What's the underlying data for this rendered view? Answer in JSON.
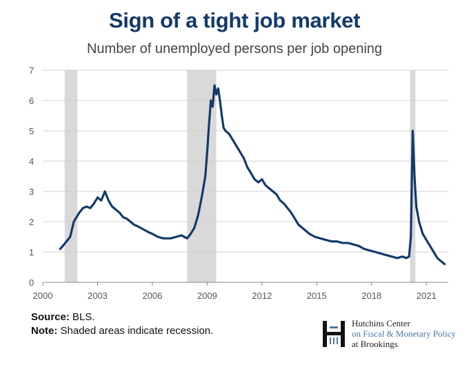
{
  "header": {
    "title": "Sign of a tight job market",
    "subtitle": "Number of unemployed persons per job opening"
  },
  "footer": {
    "source_label": "Source:",
    "source_text": "BLS.",
    "note_label": "Note:",
    "note_text": "Shaded areas indicate recession."
  },
  "logo": {
    "line1": "Hutchins Center",
    "line2": "on Fiscal & Monetary Policy",
    "line3": "at Brookings"
  },
  "colors": {
    "line": "#123a6b",
    "recession": "#d9d9d9",
    "grid": "#d0d0d0",
    "title": "#123a6b"
  },
  "chart_data": {
    "type": "line",
    "title": "Sign of a tight job market",
    "subtitle": "Number of unemployed persons per job opening",
    "xlabel": "",
    "ylabel": "",
    "xlim": [
      2000,
      2022.2
    ],
    "ylim": [
      0,
      7
    ],
    "xticks": [
      2000,
      2003,
      2006,
      2009,
      2012,
      2015,
      2018,
      2021
    ],
    "yticks": [
      0,
      1,
      2,
      3,
      4,
      5,
      6,
      7
    ],
    "grid": true,
    "recessions": [
      [
        2001.2,
        2001.9
      ],
      [
        2007.9,
        2009.5
      ],
      [
        2020.1,
        2020.4
      ]
    ],
    "series": [
      {
        "x": [
          2000.95,
          2001.1,
          2001.3,
          2001.5,
          2001.7,
          2001.9,
          2002.0,
          2002.2,
          2002.4,
          2002.6,
          2002.8,
          2003.0,
          2003.2,
          2003.4,
          2003.5,
          2003.6,
          2003.8,
          2004.0,
          2004.2,
          2004.4,
          2004.6,
          2004.8,
          2005.0,
          2005.2,
          2005.5,
          2005.8,
          2006.0,
          2006.3,
          2006.6,
          2007.0,
          2007.3,
          2007.6,
          2007.9,
          2008.1,
          2008.3,
          2008.5,
          2008.7,
          2008.9,
          2009.0,
          2009.1,
          2009.2,
          2009.3,
          2009.4,
          2009.5,
          2009.6,
          2009.7,
          2009.8,
          2009.9,
          2010.0,
          2010.2,
          2010.4,
          2010.6,
          2010.8,
          2011.0,
          2011.2,
          2011.4,
          2011.6,
          2011.8,
          2012.0,
          2012.2,
          2012.4,
          2012.6,
          2012.8,
          2013.0,
          2013.2,
          2013.4,
          2013.6,
          2013.8,
          2014.0,
          2014.3,
          2014.6,
          2014.9,
          2015.2,
          2015.5,
          2015.8,
          2016.1,
          2016.4,
          2016.7,
          2017.0,
          2017.3,
          2017.6,
          2017.9,
          2018.2,
          2018.5,
          2018.8,
          2019.1,
          2019.4,
          2019.7,
          2019.9,
          2020.05,
          2020.15,
          2020.25,
          2020.35,
          2020.45,
          2020.6,
          2020.8,
          2021.0,
          2021.2,
          2021.4,
          2021.6,
          2021.8,
          2022.0
        ],
        "y": [
          1.1,
          1.2,
          1.35,
          1.5,
          2.0,
          2.2,
          2.3,
          2.45,
          2.5,
          2.45,
          2.6,
          2.8,
          2.7,
          3.0,
          2.85,
          2.7,
          2.5,
          2.4,
          2.3,
          2.15,
          2.1,
          2.0,
          1.9,
          1.85,
          1.75,
          1.65,
          1.6,
          1.5,
          1.45,
          1.45,
          1.5,
          1.55,
          1.45,
          1.6,
          1.8,
          2.2,
          2.8,
          3.5,
          4.3,
          5.2,
          6.0,
          5.8,
          6.5,
          6.2,
          6.4,
          6.0,
          5.5,
          5.1,
          5.0,
          4.9,
          4.7,
          4.5,
          4.3,
          4.1,
          3.8,
          3.6,
          3.4,
          3.3,
          3.4,
          3.2,
          3.1,
          3.0,
          2.9,
          2.7,
          2.6,
          2.45,
          2.3,
          2.1,
          1.9,
          1.75,
          1.6,
          1.5,
          1.45,
          1.4,
          1.35,
          1.35,
          1.3,
          1.3,
          1.25,
          1.2,
          1.1,
          1.05,
          1.0,
          0.95,
          0.9,
          0.85,
          0.8,
          0.85,
          0.8,
          0.85,
          1.5,
          5.0,
          3.5,
          2.5,
          2.0,
          1.6,
          1.4,
          1.2,
          1.0,
          0.8,
          0.7,
          0.6
        ]
      }
    ]
  }
}
